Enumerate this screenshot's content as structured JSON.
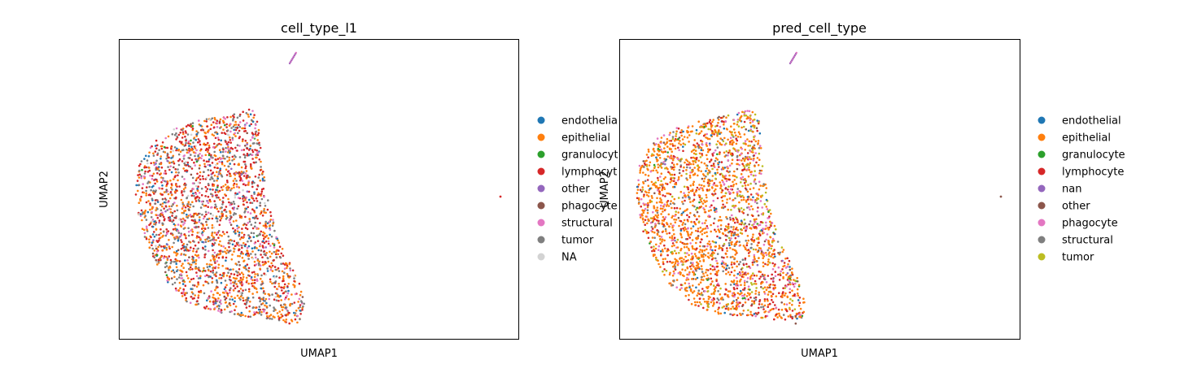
{
  "chart_data": [
    {
      "type": "scatter",
      "title": "cell_type_l1",
      "xlabel": "UMAP1",
      "ylabel": "UMAP2",
      "legend_position": "right",
      "categories": [
        "endothelial",
        "epithelial",
        "granulocyte",
        "lymphocyte",
        "other",
        "phagocyte",
        "structural",
        "tumor",
        "NA"
      ],
      "legend_display": [
        "endothelia",
        "epithelial",
        "granulocyt",
        "lymphocyt",
        "other",
        "phagocyte",
        "structural",
        "tumor",
        "NA"
      ],
      "colors": [
        "#1f77b4",
        "#ff7f0e",
        "#2ca02c",
        "#d62728",
        "#9467bd",
        "#8c564b",
        "#e377c2",
        "#7f7f7f",
        "#d3d3d3"
      ],
      "approx_mix": [
        0.08,
        0.3,
        0.01,
        0.25,
        0.01,
        0.03,
        0.08,
        0.22,
        0.02
      ]
    },
    {
      "type": "scatter",
      "title": "pred_cell_type",
      "xlabel": "UMAP1",
      "ylabel": "UMAP2",
      "legend_position": "right",
      "categories": [
        "endothelial",
        "epithelial",
        "granulocyte",
        "lymphocyte",
        "nan",
        "other",
        "phagocyte",
        "structural",
        "tumor"
      ],
      "legend_display": [
        "endothelial",
        "epithelial",
        "granulocyte",
        "lymphocyte",
        "nan",
        "other",
        "phagocyte",
        "structural",
        "tumor"
      ],
      "colors": [
        "#1f77b4",
        "#ff7f0e",
        "#2ca02c",
        "#d62728",
        "#9467bd",
        "#8c564b",
        "#e377c2",
        "#7f7f7f",
        "#bcbd22"
      ],
      "approx_mix": [
        0.03,
        0.5,
        0.01,
        0.18,
        0.01,
        0.03,
        0.1,
        0.07,
        0.07
      ]
    }
  ]
}
